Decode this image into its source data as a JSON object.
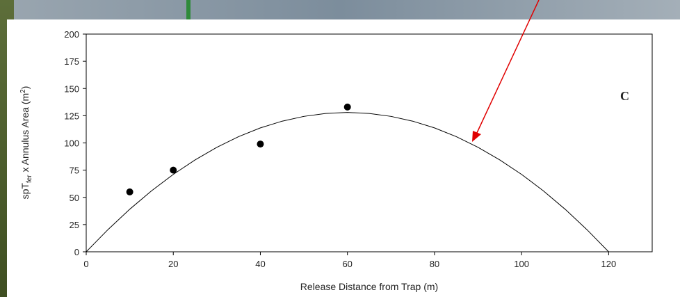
{
  "chart_data": {
    "type": "scatter",
    "title": "C",
    "x_label": "Release Distance from Trap (m)",
    "y_label_parts": [
      "spT",
      "fer",
      " x Annulus Area (m",
      "2",
      ")"
    ],
    "x": [
      10,
      20,
      40,
      60
    ],
    "values": [
      55,
      75,
      99,
      133
    ],
    "color": "#000000",
    "curve": {
      "x": [
        0,
        5,
        10,
        15,
        20,
        25,
        30,
        35,
        40,
        45,
        50,
        55,
        60,
        65,
        70,
        75,
        80,
        85,
        90,
        95,
        100,
        105,
        110,
        115,
        120
      ],
      "values": [
        0,
        20.4,
        39.1,
        56.0,
        71.1,
        84.4,
        96.0,
        105.8,
        113.8,
        120.0,
        124.4,
        127.1,
        128.0,
        127.1,
        124.4,
        120.0,
        113.8,
        105.8,
        96.0,
        84.4,
        71.1,
        56.0,
        39.1,
        20.4,
        0
      ]
    },
    "xlim": [
      0,
      130
    ],
    "xticks": [
      0,
      20,
      40,
      60,
      80,
      100,
      120
    ],
    "ylim": [
      0,
      200
    ],
    "yticks": [
      0,
      25,
      50,
      75,
      100,
      125,
      150,
      175,
      200
    ]
  }
}
